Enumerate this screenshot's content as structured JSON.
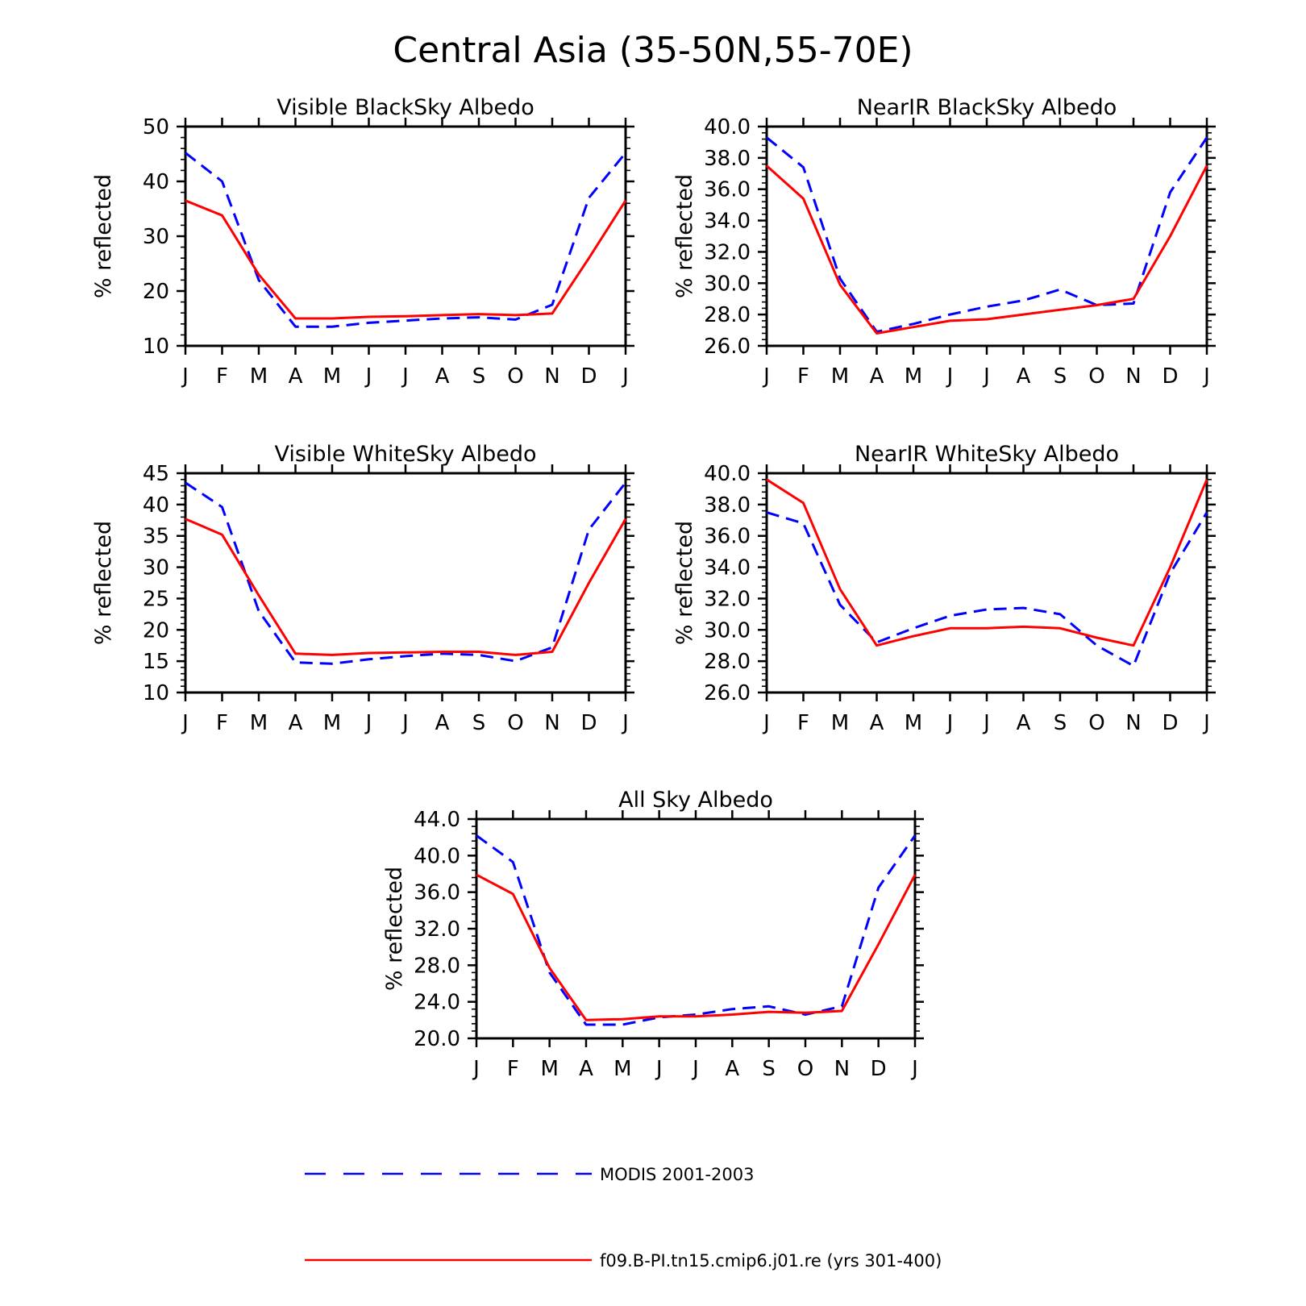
{
  "title": "Central Asia (35-50N,55-70E)",
  "months": [
    "J",
    "F",
    "M",
    "A",
    "M",
    "J",
    "J",
    "A",
    "S",
    "O",
    "N",
    "D",
    "J"
  ],
  "legend": [
    {
      "label": "MODIS 2001-2003",
      "color": "#0000ff",
      "style": "dashed"
    },
    {
      "label": "f09.B-PI.tn15.cmip6.j01.re (yrs 301-400)",
      "color": "#ff0000",
      "style": "solid"
    }
  ],
  "chart_data": [
    {
      "type": "line",
      "title": "Visible BlackSky Albedo",
      "ylabel": "% reflected",
      "ylim": [
        10,
        50
      ],
      "yticks": [
        "10",
        "20",
        "30",
        "40",
        "50"
      ],
      "ytick_values": [
        10,
        20,
        30,
        40,
        50
      ],
      "series": [
        {
          "name": "MODIS 2001-2003",
          "color": "#0000ff",
          "style": "dashed",
          "values": [
            45.2,
            40.0,
            22.0,
            13.5,
            13.5,
            14.2,
            14.6,
            15.0,
            15.2,
            14.8,
            17.5,
            37.0,
            45.2
          ]
        },
        {
          "name": "f09.B-PI.tn15.cmip6.j01.re (yrs 301-400)",
          "color": "#ff0000",
          "style": "solid",
          "values": [
            36.5,
            33.8,
            23.0,
            15.0,
            15.0,
            15.3,
            15.4,
            15.6,
            15.8,
            15.6,
            15.9,
            26.0,
            36.5
          ]
        }
      ]
    },
    {
      "type": "line",
      "title": "NearIR BlackSky Albedo",
      "ylabel": "% reflected",
      "ylim": [
        26,
        40
      ],
      "yticks": [
        "26.0",
        "28.0",
        "30.0",
        "32.0",
        "34.0",
        "36.0",
        "38.0",
        "40.0"
      ],
      "ytick_values": [
        26,
        28,
        30,
        32,
        34,
        36,
        38,
        40
      ],
      "series": [
        {
          "name": "MODIS 2001-2003",
          "color": "#0000ff",
          "style": "dashed",
          "values": [
            39.3,
            37.4,
            30.3,
            26.9,
            27.4,
            28.0,
            28.5,
            28.9,
            29.6,
            28.6,
            28.7,
            35.8,
            39.3
          ]
        },
        {
          "name": "f09.B-PI.tn15.cmip6.j01.re (yrs 301-400)",
          "color": "#ff0000",
          "style": "solid",
          "values": [
            37.5,
            35.4,
            29.9,
            26.8,
            27.2,
            27.6,
            27.7,
            28.0,
            28.3,
            28.6,
            29.0,
            33.0,
            37.5
          ]
        }
      ]
    },
    {
      "type": "line",
      "title": "Visible WhiteSky Albedo",
      "ylabel": "% reflected",
      "ylim": [
        10,
        45
      ],
      "yticks": [
        "10",
        "15",
        "20",
        "25",
        "30",
        "35",
        "40",
        "45"
      ],
      "ytick_values": [
        10,
        15,
        20,
        25,
        30,
        35,
        40,
        45
      ],
      "series": [
        {
          "name": "MODIS 2001-2003",
          "color": "#0000ff",
          "style": "dashed",
          "values": [
            43.5,
            39.6,
            23.0,
            14.8,
            14.6,
            15.3,
            15.8,
            16.2,
            16.0,
            15.0,
            17.2,
            36.0,
            43.5
          ]
        },
        {
          "name": "f09.B-PI.tn15.cmip6.j01.re (yrs 301-400)",
          "color": "#ff0000",
          "style": "solid",
          "values": [
            37.7,
            35.2,
            25.5,
            16.2,
            16.0,
            16.3,
            16.4,
            16.5,
            16.5,
            16.0,
            16.5,
            27.5,
            37.7
          ]
        }
      ]
    },
    {
      "type": "line",
      "title": "NearIR WhiteSky Albedo",
      "ylabel": "% reflected",
      "ylim": [
        26,
        40
      ],
      "yticks": [
        "26.0",
        "28.0",
        "30.0",
        "32.0",
        "34.0",
        "36.0",
        "38.0",
        "40.0"
      ],
      "ytick_values": [
        26,
        28,
        30,
        32,
        34,
        36,
        38,
        40
      ],
      "series": [
        {
          "name": "MODIS 2001-2003",
          "color": "#0000ff",
          "style": "dashed",
          "values": [
            37.5,
            36.8,
            31.6,
            29.2,
            30.1,
            30.9,
            31.3,
            31.4,
            31.0,
            29.0,
            27.7,
            33.6,
            37.5
          ]
        },
        {
          "name": "f09.B-PI.tn15.cmip6.j01.re (yrs 301-400)",
          "color": "#ff0000",
          "style": "solid",
          "values": [
            39.6,
            38.1,
            32.6,
            29.0,
            29.6,
            30.1,
            30.1,
            30.2,
            30.1,
            29.5,
            29.0,
            34.0,
            39.6
          ]
        }
      ]
    },
    {
      "type": "line",
      "title": "All Sky Albedo",
      "ylabel": "% reflected",
      "ylim": [
        20,
        44
      ],
      "yticks": [
        "20.0",
        "24.0",
        "28.0",
        "32.0",
        "36.0",
        "40.0",
        "44.0"
      ],
      "ytick_values": [
        20,
        24,
        28,
        32,
        36,
        40,
        44
      ],
      "series": [
        {
          "name": "MODIS 2001-2003",
          "color": "#0000ff",
          "style": "dashed",
          "values": [
            42.2,
            39.3,
            27.2,
            21.5,
            21.5,
            22.3,
            22.6,
            23.2,
            23.5,
            22.6,
            23.5,
            36.5,
            42.2
          ]
        },
        {
          "name": "f09.B-PI.tn15.cmip6.j01.re (yrs 301-400)",
          "color": "#ff0000",
          "style": "solid",
          "values": [
            37.9,
            35.8,
            27.7,
            22.0,
            22.1,
            22.4,
            22.4,
            22.6,
            22.9,
            22.8,
            23.0,
            30.3,
            37.9
          ]
        }
      ]
    }
  ]
}
